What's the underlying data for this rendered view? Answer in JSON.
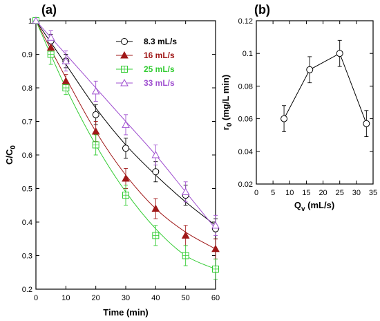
{
  "chart_data": [
    {
      "panel": "(a)",
      "type": "line",
      "title": "",
      "xlabel": "Time (min)",
      "ylabel": "C/C",
      "ylabel_sub": "0",
      "xlim": [
        0,
        60
      ],
      "ylim": [
        0.2,
        1.0
      ],
      "xticks": [
        0,
        10,
        20,
        30,
        40,
        50,
        60
      ],
      "yticks": [
        0.2,
        0.3,
        0.4,
        0.5,
        0.6,
        0.7,
        0.8,
        0.9,
        1.0
      ],
      "xtick_labels": [
        "0",
        "10",
        "20",
        "30",
        "40",
        "50",
        "60"
      ],
      "ytick_labels": [
        "0.2",
        "0.3",
        "0.4",
        "0.5",
        "0.6",
        "0.7",
        "0.8",
        "0.9",
        "1"
      ],
      "grid": false,
      "legend_position": "top-right",
      "series": [
        {
          "name": "8.3 mL/s",
          "marker": "circle-open",
          "color": "#000000",
          "x": [
            0,
            5,
            10,
            20,
            30,
            40,
            50,
            60
          ],
          "y": [
            1.0,
            0.94,
            0.88,
            0.72,
            0.62,
            0.55,
            0.48,
            0.38
          ],
          "err": [
            0,
            0.02,
            0.02,
            0.03,
            0.03,
            0.03,
            0.03,
            0.03
          ],
          "fit": [
            [
              0,
              1.0
            ],
            [
              10,
              0.87
            ],
            [
              20,
              0.74
            ],
            [
              30,
              0.63
            ],
            [
              40,
              0.54
            ],
            [
              50,
              0.46
            ],
            [
              60,
              0.39
            ]
          ]
        },
        {
          "name": "16 mL/s",
          "marker": "triangle-filled",
          "color": "#a01818",
          "x": [
            0,
            5,
            10,
            20,
            30,
            40,
            50,
            60
          ],
          "y": [
            1.0,
            0.92,
            0.82,
            0.67,
            0.53,
            0.44,
            0.36,
            0.32
          ],
          "err": [
            0,
            0.02,
            0.02,
            0.03,
            0.03,
            0.03,
            0.03,
            0.03
          ],
          "fit": [
            [
              0,
              1.0
            ],
            [
              10,
              0.83
            ],
            [
              20,
              0.67
            ],
            [
              30,
              0.54
            ],
            [
              40,
              0.44
            ],
            [
              50,
              0.37
            ],
            [
              60,
              0.32
            ]
          ]
        },
        {
          "name": "25 mL/s",
          "marker": "square-open",
          "color": "#33cc33",
          "x": [
            0,
            5,
            10,
            20,
            30,
            40,
            50,
            60
          ],
          "y": [
            1.0,
            0.9,
            0.8,
            0.63,
            0.48,
            0.36,
            0.3,
            0.26
          ],
          "err": [
            0,
            0.03,
            0.02,
            0.03,
            0.03,
            0.03,
            0.03,
            0.03
          ],
          "fit": [
            [
              0,
              1.0
            ],
            [
              10,
              0.8
            ],
            [
              20,
              0.63
            ],
            [
              30,
              0.49
            ],
            [
              40,
              0.38
            ],
            [
              50,
              0.3
            ],
            [
              60,
              0.26
            ]
          ]
        },
        {
          "name": "33 mL/s",
          "marker": "triangle-open",
          "color": "#a050d0",
          "x": [
            0,
            5,
            10,
            20,
            30,
            40,
            50,
            60
          ],
          "y": [
            1.0,
            0.95,
            0.88,
            0.79,
            0.69,
            0.6,
            0.49,
            0.39
          ],
          "err": [
            0,
            0.02,
            0.03,
            0.03,
            0.03,
            0.03,
            0.03,
            0.03
          ],
          "fit": [
            [
              0,
              1.0
            ],
            [
              10,
              0.9
            ],
            [
              20,
              0.8
            ],
            [
              30,
              0.7
            ],
            [
              40,
              0.6
            ],
            [
              50,
              0.49
            ],
            [
              60,
              0.38
            ]
          ]
        }
      ]
    },
    {
      "panel": "(b)",
      "type": "line",
      "title": "",
      "xlabel": "Q",
      "xlabel_sub": "v",
      "xlabel_suffix": " (mL/s)",
      "ylabel": "r",
      "ylabel_sub": "0",
      "ylabel_suffix": " (mg/L min)",
      "xlim": [
        0,
        35
      ],
      "ylim": [
        0.02,
        0.12
      ],
      "xticks": [
        0,
        5,
        10,
        15,
        20,
        25,
        30,
        35
      ],
      "yticks": [
        0.02,
        0.04,
        0.06,
        0.08,
        0.1,
        0.12
      ],
      "xtick_labels": [
        "0",
        "5",
        "10",
        "15",
        "20",
        "25",
        "30",
        "35"
      ],
      "ytick_labels": [
        "0.02",
        "0.04",
        "0.06",
        "0.08",
        "0.1",
        "0.12"
      ],
      "grid": false,
      "series": [
        {
          "marker": "circle-open",
          "color": "#000000",
          "x": [
            8.3,
            16,
            25,
            33
          ],
          "y": [
            0.06,
            0.09,
            0.1,
            0.057
          ],
          "err": [
            0.008,
            0.008,
            0.008,
            0.008
          ]
        }
      ]
    }
  ]
}
